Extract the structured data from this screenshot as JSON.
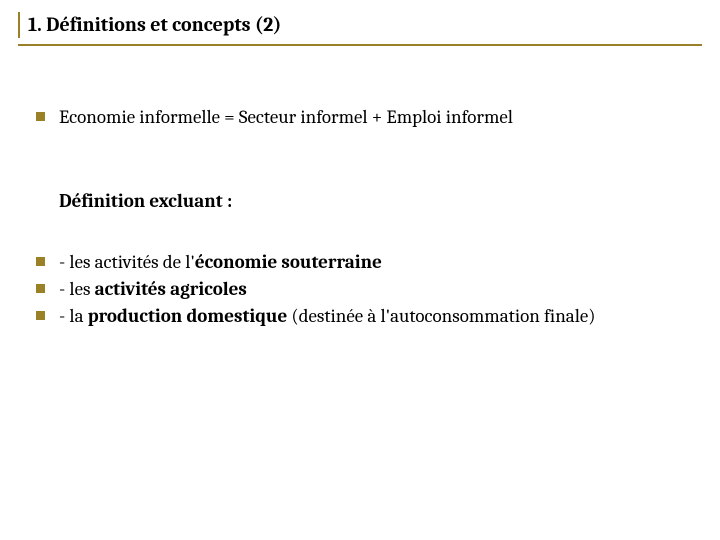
{
  "colors": {
    "rule": "#9a8027",
    "bullet": "#9a8027",
    "text": "#000000",
    "background": "#ffffff"
  },
  "title": "1. Définitions et concepts (2)",
  "bullet1": {
    "plain": "Economie informelle = Secteur informel + Emploi informel"
  },
  "subheading": "Définition excluant :",
  "items": [
    {
      "prefix": "- les activités de l'",
      "bold": "économie souterraine",
      "suffix": ""
    },
    {
      "prefix": "- les ",
      "bold": "activités agricoles",
      "suffix": ""
    },
    {
      "prefix": "- la ",
      "bold": "production domestique",
      "suffix": " (destinée  à l'autoconsommation finale)"
    }
  ]
}
